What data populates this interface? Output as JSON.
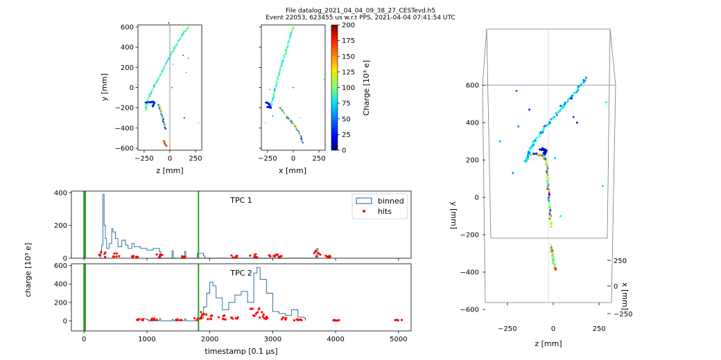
{
  "title_line1": "File datalog_2021_04_04_09_38_27_CESTevd.h5",
  "title_line2": "Event 22053, 623455 us w.r.t PPS, 2021-04-04 07:41:54 UTC",
  "colors": {
    "binned": "#1f5f8b",
    "hits": "#ff0000",
    "trigger": "#2ca02c",
    "spine": "#000000"
  },
  "chart_data": [
    {
      "type": "scatter",
      "panel": "zy",
      "xlabel": "z [mm]",
      "ylabel": "y [mm]",
      "xlim": [
        -310,
        310
      ],
      "ylim": [
        -620,
        620
      ],
      "xticks": [
        -250,
        0,
        250
      ],
      "yticks": [
        -600,
        -400,
        -200,
        0,
        200,
        400,
        600
      ],
      "track_main": [
        [
          180,
          600
        ],
        [
          120,
          520
        ],
        [
          60,
          420
        ],
        [
          10,
          330
        ],
        [
          -40,
          230
        ],
        [
          -90,
          130
        ],
        [
          -140,
          40
        ],
        [
          -190,
          -60
        ],
        [
          -225,
          -150
        ],
        [
          -235,
          -230
        ]
      ],
      "track_branch": [
        [
          -110,
          -170
        ],
        [
          -90,
          -230
        ],
        [
          -70,
          -300
        ],
        [
          -55,
          -360
        ],
        [
          -45,
          -410
        ]
      ],
      "track_lower": [
        [
          -60,
          -530
        ],
        [
          -45,
          -560
        ],
        [
          -35,
          -580
        ]
      ],
      "kink": [
        [
          -235,
          -150
        ],
        [
          -160,
          -140
        ],
        [
          -150,
          -150
        ],
        [
          -170,
          -190
        ]
      ],
      "stray": [
        [
          20,
          0
        ],
        [
          30,
          230
        ],
        [
          130,
          320
        ],
        [
          160,
          150
        ],
        [
          180,
          290
        ],
        [
          140,
          -300
        ],
        [
          280,
          -350
        ],
        [
          -10,
          640
        ]
      ]
    },
    {
      "type": "scatter",
      "panel": "xy",
      "xlabel": "x [mm]",
      "ylabel": "",
      "xlim": [
        -310,
        310
      ],
      "ylim": [
        -620,
        620
      ],
      "xticks": [
        -250,
        0,
        250
      ],
      "yticks": [
        -600,
        -400,
        -200,
        0,
        200,
        400,
        600
      ],
      "track_main": [
        [
          0,
          600
        ],
        [
          -30,
          500
        ],
        [
          -60,
          400
        ],
        [
          -90,
          300
        ],
        [
          -120,
          200
        ],
        [
          -150,
          100
        ],
        [
          -175,
          0
        ],
        [
          -195,
          -100
        ],
        [
          -215,
          -180
        ]
      ],
      "track_branch": [
        [
          -130,
          -200
        ],
        [
          -60,
          -290
        ],
        [
          0,
          -360
        ],
        [
          60,
          -450
        ],
        [
          100,
          -560
        ]
      ],
      "kink": [
        [
          -265,
          -150
        ],
        [
          -235,
          -160
        ],
        [
          -215,
          -200
        ],
        [
          -260,
          -190
        ]
      ],
      "stray": [
        [
          -230,
          -20
        ],
        [
          -200,
          -280
        ],
        [
          0,
          0
        ],
        [
          70,
          -300
        ],
        [
          300,
          80
        ],
        [
          -270,
          -350
        ]
      ],
      "colorbar": {
        "label": "Charge [10³ e]",
        "range": [
          0,
          200
        ],
        "ticks": [
          0,
          25,
          50,
          75,
          100,
          125,
          150,
          175,
          200
        ]
      }
    },
    {
      "type": "histogram",
      "panel": "tpc1",
      "title": "TPC 1",
      "xlim": [
        -200,
        5200
      ],
      "ylim": [
        0,
        410
      ],
      "xticks": [
        0,
        1000,
        2000,
        3000,
        4000,
        5000
      ],
      "yticks": [
        0,
        200,
        400
      ],
      "trigger_lines": [
        0,
        20,
        1820
      ],
      "binned": [
        [
          260,
          30
        ],
        [
          280,
          80
        ],
        [
          300,
          390
        ],
        [
          320,
          200
        ],
        [
          340,
          120
        ],
        [
          360,
          60
        ],
        [
          400,
          90
        ],
        [
          440,
          180
        ],
        [
          460,
          160
        ],
        [
          500,
          120
        ],
        [
          540,
          70
        ],
        [
          600,
          110
        ],
        [
          660,
          80
        ],
        [
          700,
          60
        ],
        [
          760,
          90
        ],
        [
          800,
          70
        ],
        [
          900,
          60
        ],
        [
          1000,
          50
        ],
        [
          1100,
          60
        ],
        [
          1200,
          40
        ],
        [
          1400,
          45
        ],
        [
          1600,
          40
        ],
        [
          1800,
          30
        ],
        [
          1900,
          15
        ],
        [
          3700,
          60
        ]
      ],
      "hits": [
        [
          300,
          40
        ],
        [
          500,
          30
        ],
        [
          800,
          20
        ],
        [
          1200,
          25
        ],
        [
          1600,
          15
        ],
        [
          2400,
          20
        ],
        [
          2700,
          25
        ],
        [
          3000,
          20
        ],
        [
          3100,
          30
        ],
        [
          3700,
          50
        ],
        [
          3900,
          20
        ]
      ],
      "legend": {
        "binned": "binned",
        "hits": "hits",
        "position": "top-right"
      }
    },
    {
      "type": "histogram",
      "panel": "tpc2",
      "title": "TPC 2",
      "xlabel": "timestamp [0.1 μs]",
      "ylabel": "charge [10³ e]",
      "xlim": [
        -200,
        5200
      ],
      "ylim": [
        -110,
        620
      ],
      "xticks": [
        0,
        1000,
        2000,
        3000,
        4000,
        5000
      ],
      "yticks": [
        0,
        200,
        400,
        600
      ],
      "trigger_lines": [
        0,
        20,
        1820
      ],
      "binned": [
        [
          900,
          20
        ],
        [
          1000,
          15
        ],
        [
          1200,
          20
        ],
        [
          1400,
          15
        ],
        [
          1600,
          20
        ],
        [
          1800,
          30
        ],
        [
          1900,
          150
        ],
        [
          1950,
          300
        ],
        [
          2000,
          420
        ],
        [
          2050,
          380
        ],
        [
          2100,
          250
        ],
        [
          2200,
          120
        ],
        [
          2300,
          200
        ],
        [
          2400,
          280
        ],
        [
          2500,
          320
        ],
        [
          2600,
          200
        ],
        [
          2700,
          520
        ],
        [
          2750,
          580
        ],
        [
          2800,
          450
        ],
        [
          2900,
          300
        ],
        [
          3000,
          100
        ],
        [
          3100,
          80
        ],
        [
          3200,
          60
        ],
        [
          3300,
          120
        ],
        [
          3400,
          40
        ],
        [
          3500,
          30
        ]
      ],
      "hits": [
        [
          900,
          20
        ],
        [
          1100,
          25
        ],
        [
          1500,
          20
        ],
        [
          1800,
          30
        ],
        [
          1900,
          120
        ],
        [
          2000,
          80
        ],
        [
          2200,
          60
        ],
        [
          2400,
          40
        ],
        [
          2700,
          180
        ],
        [
          2800,
          150
        ],
        [
          2900,
          60
        ],
        [
          3200,
          40
        ],
        [
          3400,
          20
        ],
        [
          4000,
          10
        ],
        [
          5000,
          10
        ]
      ]
    },
    {
      "type": "scatter3d",
      "panel": "3d",
      "xlabel": "z [mm]",
      "ylabel": "y [mm]",
      "zlabel": "x [mm]",
      "xlim": [
        -310,
        310
      ],
      "ylim": [
        -600,
        660
      ],
      "xticks": [
        -250,
        0,
        250
      ],
      "yticks": [
        -600,
        -400,
        -200,
        0,
        200,
        400,
        600
      ],
      "zticks": [
        250,
        0,
        -250
      ]
    }
  ]
}
